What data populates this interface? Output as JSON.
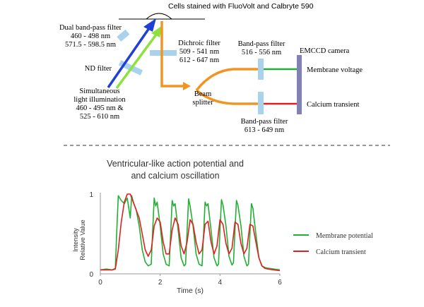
{
  "optics": {
    "sample_label": "Cells stained with FluoVolt and Calbryte 590",
    "dual_filter": {
      "title": "Dual band-pass filter",
      "line1": "460 - 498 nm",
      "line2": "571.5 - 598.5 nm"
    },
    "nd_filter": "ND filter",
    "illumination": {
      "line1": "Simultaneous",
      "line2": "light illumination",
      "line3": "460 - 495 nm &",
      "line4": "525 - 610 nm"
    },
    "dichroic": {
      "title": "Dichroic filter",
      "line1": "509 - 541 nm",
      "line2": "612 - 647 nm"
    },
    "beam_splitter": {
      "line1": "Beam",
      "line2": "splitter"
    },
    "bp_top": {
      "title": "Band-pass filter",
      "line1": "516 - 556 nm"
    },
    "bp_bottom": {
      "title": "Band-pass filter",
      "line1": "613 - 649 nm"
    },
    "camera": "EMCCD camera",
    "membrane_voltage": "Membrane voltage",
    "calcium_transient": "Calcium transient",
    "colors": {
      "blue_beam": "#1f3fd6",
      "green_beam": "#8ce13a",
      "orange_beam": "#f29422",
      "filter": "#a9d3ec",
      "camera": "#7f82b3",
      "voltage_line": "#22b033",
      "calcium_line": "#e02020"
    }
  },
  "chart_data": {
    "type": "line",
    "title_line1": "Ventricular-like action potential and",
    "title_line2": "and calcium oscillation",
    "xlabel": "Time (s)",
    "ylabel_line1": "Intensity",
    "ylabel_line2": "Relative Value",
    "xlim": [
      0,
      6
    ],
    "ylim": [
      0,
      1
    ],
    "xticks": [
      0,
      2,
      4,
      6
    ],
    "yticks": [
      0,
      1
    ],
    "legend_position": "right",
    "series": [
      {
        "name": "Membrane potential",
        "color": "#22b033",
        "x": [
          0.0,
          0.2,
          0.4,
          0.5,
          0.55,
          0.6,
          0.7,
          0.8,
          0.9,
          1.0,
          1.05,
          1.1,
          1.2,
          1.3,
          1.4,
          1.5,
          1.6,
          1.7,
          1.75,
          1.8,
          1.85,
          1.9,
          2.0,
          2.1,
          2.2,
          2.3,
          2.35,
          2.4,
          2.45,
          2.5,
          2.6,
          2.7,
          2.8,
          2.85,
          2.9,
          2.95,
          3.0,
          3.1,
          3.2,
          3.3,
          3.4,
          3.45,
          3.5,
          3.55,
          3.6,
          3.7,
          3.8,
          3.9,
          3.95,
          4.0,
          4.05,
          4.1,
          4.2,
          4.3,
          4.4,
          4.45,
          4.5,
          4.55,
          4.6,
          4.7,
          4.8,
          4.9,
          4.95,
          5.0,
          5.05,
          5.1,
          5.2,
          5.3,
          5.4,
          5.5,
          5.6,
          5.8,
          6.0
        ],
        "y": [
          0.05,
          0.06,
          0.05,
          0.07,
          0.55,
          0.98,
          0.92,
          0.88,
          0.95,
          0.7,
          0.98,
          0.9,
          0.8,
          0.6,
          0.3,
          0.15,
          0.1,
          0.12,
          0.55,
          0.95,
          0.85,
          0.9,
          0.6,
          0.25,
          0.12,
          0.1,
          0.5,
          0.92,
          0.85,
          0.88,
          0.55,
          0.2,
          0.1,
          0.12,
          0.55,
          0.94,
          0.85,
          0.6,
          0.25,
          0.12,
          0.1,
          0.5,
          0.9,
          0.85,
          0.88,
          0.55,
          0.2,
          0.1,
          0.12,
          0.55,
          0.93,
          0.86,
          0.6,
          0.22,
          0.11,
          0.14,
          0.55,
          0.92,
          0.86,
          0.6,
          0.22,
          0.1,
          0.12,
          0.5,
          0.88,
          0.82,
          0.5,
          0.2,
          0.1,
          0.08,
          0.07,
          0.06,
          0.05
        ]
      },
      {
        "name": "Calcium transient",
        "color": "#e02020",
        "x": [
          0.0,
          0.2,
          0.4,
          0.5,
          0.6,
          0.7,
          0.8,
          0.9,
          1.0,
          1.1,
          1.2,
          1.3,
          1.4,
          1.5,
          1.6,
          1.7,
          1.8,
          1.9,
          2.0,
          2.1,
          2.2,
          2.3,
          2.4,
          2.5,
          2.6,
          2.7,
          2.8,
          2.9,
          3.0,
          3.1,
          3.2,
          3.3,
          3.4,
          3.5,
          3.6,
          3.7,
          3.8,
          3.9,
          4.0,
          4.1,
          4.2,
          4.3,
          4.4,
          4.5,
          4.6,
          4.7,
          4.8,
          4.9,
          5.0,
          5.1,
          5.2,
          5.3,
          5.4,
          5.5,
          5.6,
          5.8,
          6.0
        ],
        "y": [
          0.05,
          0.05,
          0.05,
          0.06,
          0.3,
          0.65,
          0.9,
          1.0,
          1.0,
          0.9,
          0.8,
          0.7,
          0.5,
          0.3,
          0.22,
          0.3,
          0.6,
          0.7,
          0.65,
          0.4,
          0.25,
          0.25,
          0.55,
          0.7,
          0.62,
          0.35,
          0.25,
          0.4,
          0.68,
          0.62,
          0.4,
          0.25,
          0.3,
          0.62,
          0.66,
          0.4,
          0.25,
          0.35,
          0.68,
          0.62,
          0.38,
          0.25,
          0.32,
          0.65,
          0.62,
          0.38,
          0.25,
          0.32,
          0.62,
          0.6,
          0.4,
          0.2,
          0.1,
          0.07,
          0.06,
          0.05,
          0.04
        ]
      }
    ]
  }
}
